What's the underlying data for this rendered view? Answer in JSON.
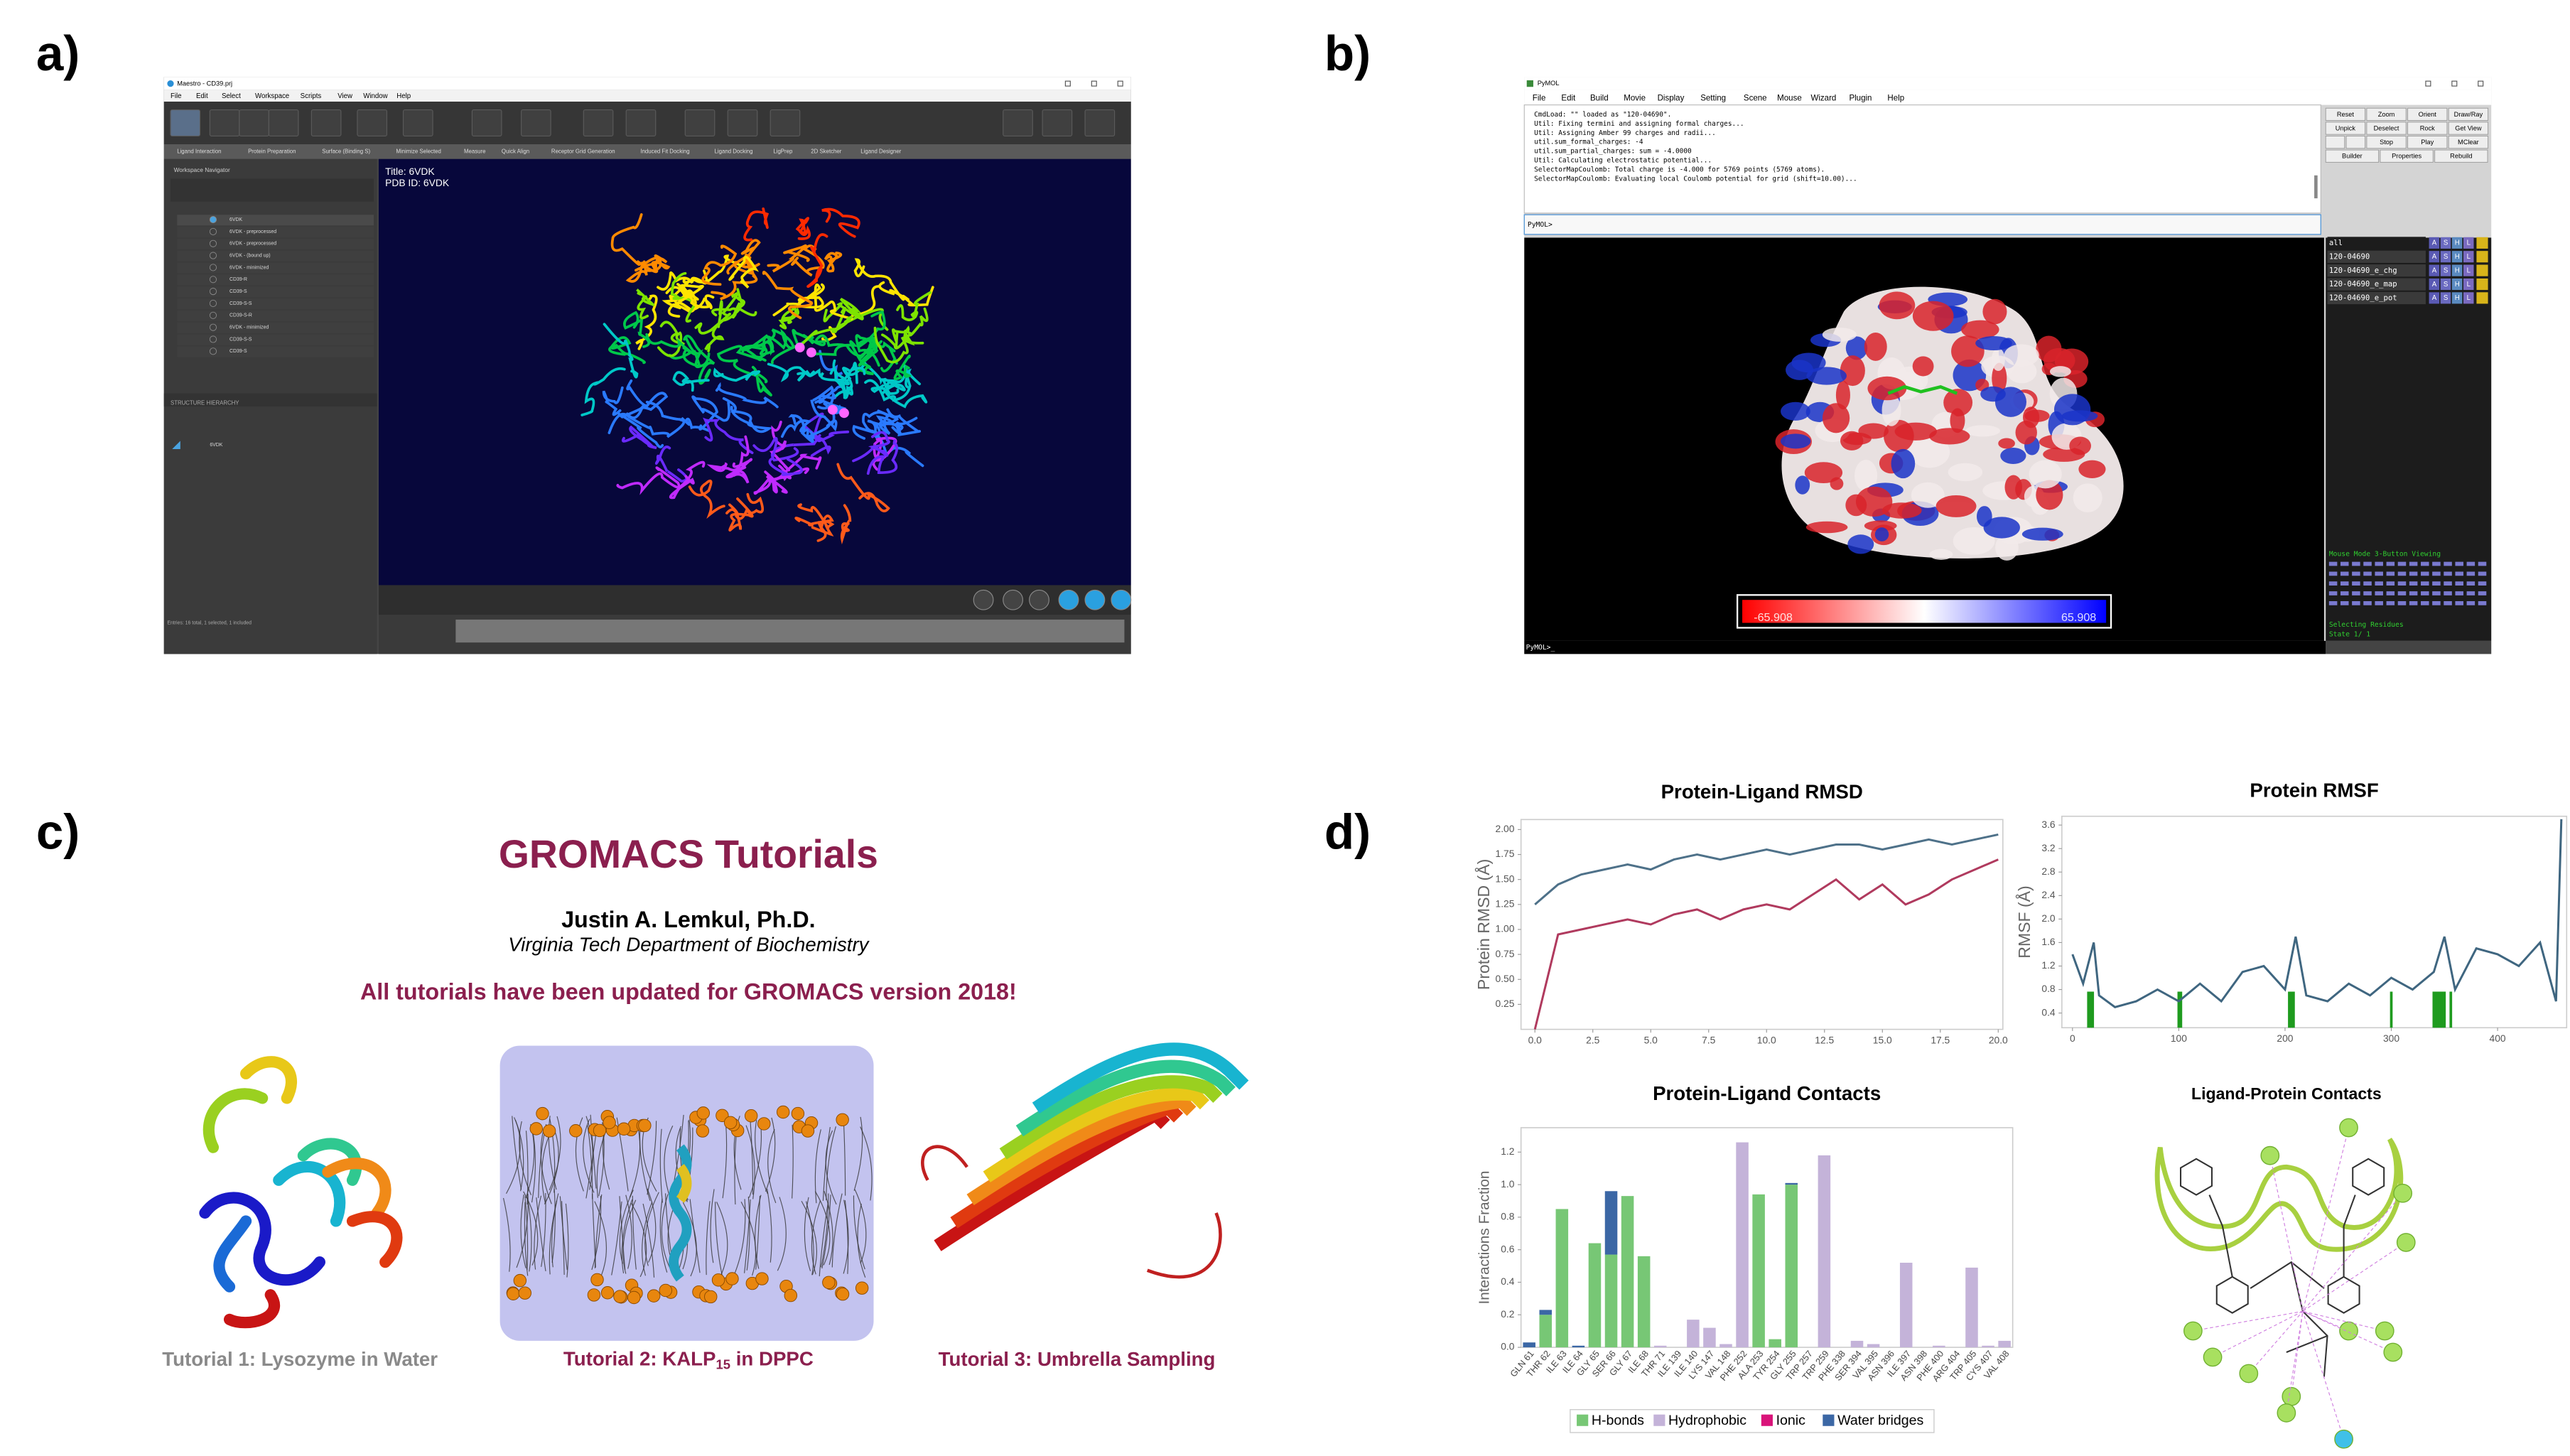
{
  "panel_labels": [
    "a)",
    "b)",
    "c)",
    "d)"
  ],
  "maestro": {
    "window_title": "Maestro - CD39.prj",
    "menu": [
      "File",
      "Edit",
      "Select",
      "Workspace",
      "Scripts",
      "View",
      "Window",
      "Help"
    ],
    "tabs": [
      "Ligand Interaction",
      "Protein Preparation",
      "Surface (Binding S)",
      "Minimize Selected",
      "Measure",
      "Quick Align",
      "Receptor Grid Generation",
      "Induced Fit Docking",
      "Ligand Docking",
      "LigPrep",
      "2D Sketcher",
      "Ligand Designer"
    ],
    "navigator_title": "Workspace Navigator",
    "entries": [
      "6VDK",
      "6VDK - preprocessed",
      "6VDK - preprocessed",
      "6VDK - (bound up)",
      "6VDK - minimized",
      "CD39-R",
      "CD39-S",
      "CD39-S-S",
      "CD39-S-R",
      "6VDK - minimized",
      "CD39-S-S",
      "CD39-S"
    ],
    "workspace_title": "Title: 6VDK",
    "workspace_pdb": "PDB ID: 6VDK",
    "structure_header": "STRUCTURE HIERARCHY",
    "tree_item": "6VDK",
    "status": "Entries: 16 total, 1 selected, 1 included"
  },
  "pymol": {
    "window_title": "PyMOL",
    "menu": [
      "File",
      "Edit",
      "Build",
      "Movie",
      "Display",
      "Setting",
      "Scene",
      "Mouse",
      "Wizard",
      "Plugin",
      "Help"
    ],
    "console": [
      "CmdLoad: \"\" loaded as \"120-04690\".",
      "Util: Fixing termini and assigning formal charges...",
      "Util: Assigning Amber 99 charges and radii...",
      "util.sum_formal_charges: -4",
      "util.sum_partial_charges: sum = -4.0000",
      "Util: Calculating electrostatic potential...",
      "SelectorMapCoulomb: Total charge is -4.000 for 5769 points (5769 atoms).",
      "SelectorMapCoulomb: Evaluating local Coulomb potential for grid (shift=10.00)..."
    ],
    "prompt": "PyMOL>",
    "buttons": [
      "Reset",
      "Zoom",
      "Orient",
      "Draw/Ray",
      "Unpick",
      "Deselect",
      "Rock",
      "Get View",
      "Stop",
      "Play",
      "MClear",
      "Builder",
      "Properties",
      "Rebuild"
    ],
    "objects": [
      "all",
      "120-04690",
      "120-04690_e_chg",
      "120-04690_e_map",
      "120-04690_e_pot"
    ],
    "object_flags": [
      "A",
      "S",
      "H",
      "L"
    ],
    "mouse_mode": [
      "Mouse Mode 3-Button Viewing",
      "Selecting Residues",
      "State 1/ 1"
    ],
    "colorbar_min": "-65.908",
    "colorbar_max": "65.908",
    "bottom_prompt": "PyMOL>_"
  },
  "gromacs": {
    "title": "GROMACS Tutorials",
    "author": "Justin A. Lemkul, Ph.D.",
    "affiliation": "Virginia Tech Department of Biochemistry",
    "notice": "All tutorials have been updated for GROMACS version 2018!",
    "tutorial_1": "Tutorial 1: Lysozyme in Water",
    "tutorial_2": [
      "Tutorial 2: KALP",
      "15",
      " in DPPC"
    ],
    "tutorial_3": "Tutorial 3: Umbrella Sampling"
  },
  "chart_data": [
    {
      "type": "line",
      "title": "Protein-Ligand RMSD",
      "y_label": "Protein RMSD (Å)",
      "x": [
        0,
        1,
        2,
        3,
        4,
        5,
        6,
        7,
        8,
        9,
        10,
        11,
        12,
        13,
        14,
        15,
        16,
        17,
        18,
        19,
        20
      ],
      "xlim": [
        -0.6,
        20.2
      ],
      "xticks": [
        {
          "value": 0,
          "label": "0.0"
        },
        2.5,
        {
          "value": 5,
          "label": "5.0"
        },
        7.5,
        {
          "value": 10,
          "label": "10.0"
        },
        12.5,
        {
          "value": 15,
          "label": "15.0"
        },
        17.5,
        {
          "value": 20,
          "label": "20.0"
        }
      ],
      "ylim": [
        0,
        2.1
      ],
      "yticks": [
        0.25,
        {
          "value": 0.5,
          "label": "0.50"
        },
        0.75,
        {
          "value": 1,
          "label": "1.00"
        },
        1.25,
        {
          "value": 1.5,
          "label": "1.50"
        },
        1.75,
        {
          "value": 2,
          "label": "2.00"
        }
      ],
      "series": [
        {
          "color": "#4e7189",
          "values": [
            1.25,
            1.45,
            1.55,
            1.6,
            1.65,
            1.6,
            1.7,
            1.75,
            1.7,
            1.75,
            1.8,
            1.75,
            1.8,
            1.85,
            1.85,
            1.8,
            1.85,
            1.9,
            1.85,
            1.9,
            1.95
          ]
        },
        {
          "color": "#b03a5e",
          "values": [
            0,
            0.95,
            1.0,
            1.05,
            1.1,
            1.05,
            1.15,
            1.2,
            1.1,
            1.2,
            1.25,
            1.2,
            1.35,
            1.5,
            1.3,
            1.45,
            1.25,
            1.35,
            1.5,
            1.6,
            1.7
          ]
        }
      ]
    },
    {
      "type": "line",
      "title": "Protein RMSF",
      "y_label": "RMSF (Å)",
      "x": [
        0,
        10,
        20,
        25,
        40,
        60,
        80,
        100,
        120,
        140,
        160,
        180,
        200,
        210,
        220,
        240,
        260,
        280,
        300,
        320,
        340,
        350,
        360,
        380,
        400,
        420,
        440,
        455,
        460
      ],
      "xlim": [
        -10,
        465
      ],
      "xticks": [
        0,
        100,
        200,
        300,
        400
      ],
      "ylim": [
        0.15,
        3.75
      ],
      "yticks": [
        0.4,
        0.8,
        1.2,
        1.6,
        {
          "value": 2,
          "label": "2.0"
        },
        2.4,
        2.8,
        3.2,
        3.6
      ],
      "series": [
        {
          "color": "#3f6680",
          "values": [
            1.4,
            0.9,
            1.6,
            0.7,
            0.5,
            0.6,
            0.8,
            0.6,
            0.9,
            0.6,
            1.1,
            1.2,
            0.8,
            1.7,
            0.7,
            0.6,
            0.9,
            0.7,
            1.0,
            0.8,
            1.1,
            1.7,
            0.8,
            1.5,
            1.4,
            1.2,
            1.6,
            0.6,
            3.7
          ]
        }
      ],
      "contact_residues": [
        15,
        17,
        19,
        100,
        102,
        204,
        206,
        208,
        300,
        340,
        342,
        344,
        346,
        348,
        350,
        356
      ],
      "contact_color": "#1f9b1f"
    },
    {
      "type": "stacked_bar",
      "title": "Protein-Ligand Contacts",
      "y_label": "Interactions Fraction",
      "categories": [
        "GLN 61",
        "THR 62",
        "ILE 63",
        "ILE 64",
        "GLY 65",
        "SER 66",
        "GLY 67",
        "ILE 68",
        "THR 71",
        "ILE 139",
        "ILE 140",
        "LYS 147",
        "VAL 148",
        "PHE 252",
        "ALA 253",
        "TYR 254",
        "GLY 255",
        "TRP 257",
        "TRP 259",
        "PHE 338",
        "SER 394",
        "VAL 395",
        "ASN 396",
        "ILE 397",
        "ASN 398",
        "PHE 400",
        "ARG 404",
        "TRP 405",
        "CYS 407",
        "VAL 408"
      ],
      "ylim": [
        0,
        1.35
      ],
      "yticks": [
        {
          "value": 0,
          "label": "0.0"
        },
        0.2,
        0.4,
        0.6,
        0.8,
        {
          "value": 1,
          "label": "1.0"
        },
        1.2
      ],
      "series": [
        {
          "name": "H-bonds",
          "color": "#77c775",
          "values": [
            0,
            0.2,
            0.85,
            0,
            0.64,
            0.57,
            0.93,
            0.56,
            0,
            0,
            0,
            0,
            0,
            0,
            0.94,
            0.05,
            1.0,
            0,
            0,
            0,
            0,
            0,
            0,
            0,
            0,
            0,
            0,
            0,
            0,
            0
          ]
        },
        {
          "name": "Hydrophobic",
          "color": "#c4b3d9",
          "values": [
            0,
            0,
            0,
            0,
            0,
            0,
            0,
            0,
            0.01,
            0,
            0.17,
            0.12,
            0.02,
            1.26,
            0,
            0,
            0,
            0,
            1.18,
            0,
            0.04,
            0.02,
            0,
            0.52,
            0,
            0.01,
            0,
            0.49,
            0.01,
            0.04
          ]
        },
        {
          "name": "Ionic",
          "color": "#d9147a",
          "values": [
            0,
            0,
            0,
            0,
            0,
            0,
            0,
            0,
            0,
            0,
            0,
            0,
            0,
            0,
            0,
            0,
            0,
            0,
            0,
            0,
            0,
            0,
            0,
            0,
            0,
            0,
            0,
            0,
            0,
            0
          ]
        },
        {
          "name": "Water bridges",
          "color": "#3b67a5",
          "values": [
            0.03,
            0.03,
            0,
            0.01,
            0,
            0.39,
            0,
            0,
            0,
            0,
            0,
            0,
            0,
            0,
            0,
            0,
            0.01,
            0,
            0,
            0,
            0,
            0,
            0,
            0,
            0,
            0,
            0,
            0,
            0,
            0
          ]
        }
      ],
      "legend": "bottom"
    }
  ],
  "ligand_diagram": {
    "title": "Ligand-Protein Contacts"
  }
}
